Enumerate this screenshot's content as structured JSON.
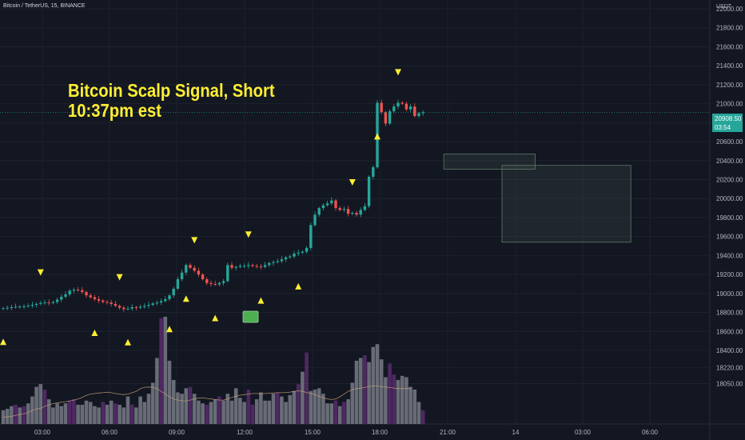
{
  "header": {
    "symbol": "Bitcoin / TetherUS, 15, BINANCE",
    "currency": "USDT"
  },
  "annotation": {
    "line1": "Bitcoin Scalp Signal, Short",
    "line2": "10:37pm est"
  },
  "last_price": {
    "value": "20908.50",
    "countdown": "03:54"
  },
  "colors": {
    "background": "#131722",
    "up": "#26a69a",
    "down": "#ef5350",
    "volume": "#787b86",
    "volume_alt": "#5b2c6f",
    "signal": "#ffee33",
    "ma": "#c8a27a"
  },
  "chart_data": {
    "type": "candlestick",
    "y_axis": {
      "ticks": [
        "22000.00",
        "21800.00",
        "21600.00",
        "21400.00",
        "21200.00",
        "21000.00",
        "20800.00",
        "20600.00",
        "20400.00",
        "20200.00",
        "20000.00",
        "19800.00",
        "19600.00",
        "19400.00",
        "19200.00",
        "19000.00",
        "18800.00",
        "18600.00",
        "18400.00",
        "18220.00",
        "18050.00"
      ],
      "range": [
        18000,
        22100
      ]
    },
    "x_axis": {
      "ticks": [
        "03:00",
        "06:00",
        "09:00",
        "12:00",
        "15:00",
        "18:00",
        "21:00",
        "14",
        "03:00",
        "06:00"
      ]
    },
    "close_prices": [
      18845,
      18850,
      18855,
      18860,
      18862,
      18865,
      18870,
      18880,
      18890,
      18900,
      18905,
      18900,
      18910,
      18935,
      18965,
      18990,
      19030,
      19040,
      19035,
      19015,
      18980,
      18960,
      18940,
      18925,
      18910,
      18905,
      18890,
      18870,
      18850,
      18835,
      18840,
      18855,
      18850,
      18860,
      18870,
      18880,
      18895,
      18905,
      18920,
      18940,
      18980,
      19050,
      19150,
      19220,
      19300,
      19270,
      19240,
      19200,
      19150,
      19110,
      19100,
      19095,
      19110,
      19130,
      19300,
      19270,
      19280,
      19290,
      19290,
      19300,
      19290,
      19285,
      19280,
      19300,
      19320,
      19330,
      19340,
      19360,
      19380,
      19390,
      19420,
      19430,
      19440,
      19480,
      19720,
      19830,
      19900,
      19930,
      19950,
      19980,
      19900,
      19880,
      19890,
      19840,
      19850,
      19830,
      19880,
      19920,
      20230,
      20330,
      21010,
      20910,
      20790,
      20920,
      20970,
      21010,
      21000,
      20940,
      20970,
      20870,
      20900,
      20910
    ],
    "volumes": [
      10,
      11,
      13,
      14,
      12,
      13,
      15,
      20,
      27,
      29,
      25,
      18,
      12,
      15,
      13,
      15,
      17,
      18,
      14,
      14,
      17,
      16,
      13,
      12,
      16,
      14,
      17,
      15,
      14,
      12,
      20,
      14,
      12,
      20,
      16,
      22,
      30,
      48,
      77,
      78,
      46,
      32,
      23,
      22,
      26,
      27,
      22,
      17,
      15,
      14,
      16,
      18,
      20,
      17,
      22,
      17,
      26,
      19,
      16,
      25,
      14,
      18,
      23,
      17,
      17,
      22,
      23,
      20,
      16,
      21,
      24,
      29,
      38,
      52,
      24,
      25,
      26,
      22,
      15,
      15,
      17,
      13,
      16,
      18,
      30,
      46,
      48,
      50,
      45,
      56,
      58,
      47,
      34,
      44,
      36,
      32,
      35,
      34,
      27,
      25,
      16,
      10
    ],
    "moving_average": [
      18195,
      18196,
      18198,
      18202,
      18205,
      18208,
      18212,
      18220,
      18225,
      18228,
      18235,
      18240,
      18245,
      18248,
      18250,
      18252,
      18255,
      18258,
      18262,
      18268,
      18275,
      18280,
      18282,
      18284,
      18285,
      18287,
      18285,
      18282,
      18280,
      18278,
      18280,
      18285,
      18290,
      18300,
      18305,
      18306,
      18305,
      18300,
      18290,
      18280,
      18270,
      18262,
      18258,
      18255,
      18255,
      18258,
      18262,
      18265,
      18266,
      18264,
      18262,
      18260,
      18258,
      18258,
      18262,
      18268,
      18272,
      18276,
      18278,
      18280,
      18282,
      18282,
      18281,
      18282,
      18283,
      18284,
      18285,
      18285,
      18286,
      18287,
      18290,
      18292,
      18290,
      18286,
      18282,
      18278,
      18272,
      18266,
      18262,
      18260,
      18262,
      18270,
      18280,
      18290,
      18296,
      18300,
      18302,
      18304,
      18308,
      18310,
      18310,
      18308,
      18306,
      18304,
      18302,
      18300,
      18300,
      18300,
      18300
    ],
    "signals_up": [
      0,
      22,
      30,
      40,
      44,
      51,
      62,
      71,
      90
    ],
    "signals_down": [
      9,
      28,
      46,
      59,
      84,
      95
    ],
    "zones": [
      {
        "y_high": 20470,
        "y_low": 20310,
        "from_index": 106,
        "to_index": 128
      },
      {
        "y_high": 20350,
        "y_low": 19540,
        "from_index": 120,
        "to_index": 151
      }
    ]
  }
}
